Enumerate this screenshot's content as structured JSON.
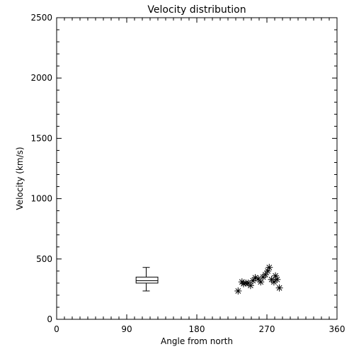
{
  "chart_data": {
    "type": "scatter",
    "title": "Velocity distribution",
    "xlabel": "Angle from north",
    "ylabel": "Velocity (km/s)",
    "xlim": [
      0,
      360
    ],
    "ylim": [
      0,
      2500
    ],
    "x_major_ticks": [
      0,
      90,
      180,
      270,
      360
    ],
    "x_minor_step": 10,
    "y_major_ticks": [
      0,
      500,
      1000,
      1500,
      2000,
      2500
    ],
    "y_minor_step": 100,
    "grid": false,
    "colors": {
      "axes": "#000000",
      "marks": "#000000",
      "background": "#ffffff"
    },
    "boxplot": {
      "x": 115,
      "x_range": [
        102,
        130
      ],
      "whisker_low": 235,
      "q1": 300,
      "median": 320,
      "q3": 350,
      "whisker_high": 430
    },
    "series": [
      {
        "marker": "asterisk",
        "points": [
          [
            233,
            235
          ],
          [
            238,
            310
          ],
          [
            240,
            295
          ],
          [
            243,
            300
          ],
          [
            246,
            300
          ],
          [
            249,
            280
          ],
          [
            252,
            320
          ],
          [
            255,
            345
          ],
          [
            259,
            335
          ],
          [
            262,
            310
          ],
          [
            265,
            350
          ],
          [
            268,
            370
          ],
          [
            271,
            400
          ],
          [
            273,
            430
          ],
          [
            276,
            330
          ],
          [
            279,
            310
          ],
          [
            281,
            360
          ],
          [
            283,
            330
          ],
          [
            286,
            260
          ]
        ]
      }
    ]
  }
}
